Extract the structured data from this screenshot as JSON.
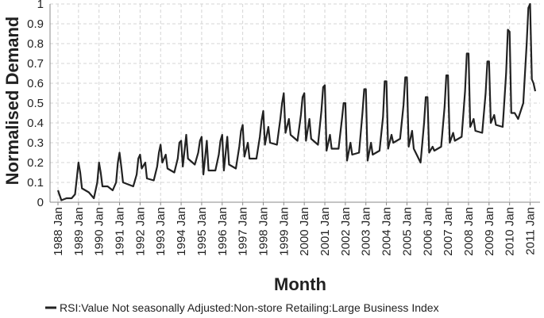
{
  "chart_data": {
    "type": "line",
    "title": "",
    "xlabel": "Month",
    "ylabel": "Normalised Demand",
    "ylim": [
      0,
      1
    ],
    "yticks": [
      "0",
      "0.1",
      "0.2",
      "0.3",
      "0.4",
      "0.5",
      "0.6",
      "0.7",
      "0.8",
      "0.9",
      "1"
    ],
    "xlim": [
      "1988 Jan",
      "2011 Apr"
    ],
    "xticks": [
      "1988 Jan",
      "1989 Jan",
      "1990 Jan",
      "1991 Jan",
      "1992 Jan",
      "1993 Jan",
      "1994 Jan",
      "1995 Jan",
      "1996 Jan",
      "1997 Jan",
      "1998 Jan",
      "1999 Jan",
      "2000 Jan",
      "2001 Jan",
      "2002 Jan",
      "2003 Jan",
      "2004 Jan",
      "2005 Jan",
      "2006 Jan",
      "2007 Jan",
      "2008 Jan",
      "2009 Jan",
      "2010 Jan",
      "2011 Jan"
    ],
    "grid": true,
    "legend_position": "bottom",
    "series": [
      {
        "name": "RSI:Value Not seasonally Adjusted:Non-store Retailing:Large Business Index",
        "color": "#222222",
        "points": [
          [
            "1988 Jan",
            0.06
          ],
          [
            "1988 Mar",
            0.01
          ],
          [
            "1988 Jun",
            0.02
          ],
          [
            "1988 Sep",
            0.02
          ],
          [
            "1988 Nov",
            0.04
          ],
          [
            "1988 Dec",
            0.12
          ],
          [
            "1989 Jan",
            0.2
          ],
          [
            "1989 Feb",
            0.15
          ],
          [
            "1989 Mar",
            0.07
          ],
          [
            "1989 Jul",
            0.05
          ],
          [
            "1989 Oct",
            0.02
          ],
          [
            "1989 Dec",
            0.1
          ],
          [
            "1990 Jan",
            0.2
          ],
          [
            "1990 Feb",
            0.15
          ],
          [
            "1990 Mar",
            0.08
          ],
          [
            "1990 Jun",
            0.08
          ],
          [
            "1990 Sep",
            0.06
          ],
          [
            "1990 Nov",
            0.1
          ],
          [
            "1990 Dec",
            0.2
          ],
          [
            "1991 Jan",
            0.25
          ],
          [
            "1991 Feb",
            0.18
          ],
          [
            "1991 Mar",
            0.1
          ],
          [
            "1991 Jun",
            0.09
          ],
          [
            "1991 Sep",
            0.08
          ],
          [
            "1991 Nov",
            0.14
          ],
          [
            "1991 Dec",
            0.22
          ],
          [
            "1992 Jan",
            0.24
          ],
          [
            "1992 Feb",
            0.17
          ],
          [
            "1992 Apr",
            0.2
          ],
          [
            "1992 May",
            0.12
          ],
          [
            "1992 Sep",
            0.11
          ],
          [
            "1992 Nov",
            0.18
          ],
          [
            "1992 Dec",
            0.25
          ],
          [
            "1993 Jan",
            0.29
          ],
          [
            "1993 Feb",
            0.2
          ],
          [
            "1993 Apr",
            0.24
          ],
          [
            "1993 May",
            0.17
          ],
          [
            "1993 Sep",
            0.15
          ],
          [
            "1993 Nov",
            0.22
          ],
          [
            "1993 Dec",
            0.3
          ],
          [
            "1994 Jan",
            0.31
          ],
          [
            "1994 Feb",
            0.18
          ],
          [
            "1994 Apr",
            0.34
          ],
          [
            "1994 May",
            0.22
          ],
          [
            "1994 Sep",
            0.19
          ],
          [
            "1994 Nov",
            0.25
          ],
          [
            "1994 Dec",
            0.31
          ],
          [
            "1995 Jan",
            0.33
          ],
          [
            "1995 Feb",
            0.14
          ],
          [
            "1995 Apr",
            0.31
          ],
          [
            "1995 May",
            0.16
          ],
          [
            "1995 Sep",
            0.16
          ],
          [
            "1995 Nov",
            0.24
          ],
          [
            "1995 Dec",
            0.31
          ],
          [
            "1996 Jan",
            0.34
          ],
          [
            "1996 Feb",
            0.16
          ],
          [
            "1996 Apr",
            0.33
          ],
          [
            "1996 May",
            0.19
          ],
          [
            "1996 Sep",
            0.17
          ],
          [
            "1996 Nov",
            0.28
          ],
          [
            "1996 Dec",
            0.36
          ],
          [
            "1997 Jan",
            0.39
          ],
          [
            "1997 Feb",
            0.23
          ],
          [
            "1997 Apr",
            0.3
          ],
          [
            "1997 May",
            0.22
          ],
          [
            "1997 Sep",
            0.22
          ],
          [
            "1997 Nov",
            0.33
          ],
          [
            "1997 Dec",
            0.41
          ],
          [
            "1998 Jan",
            0.46
          ],
          [
            "1998 Feb",
            0.29
          ],
          [
            "1998 Apr",
            0.38
          ],
          [
            "1998 May",
            0.3
          ],
          [
            "1998 Sep",
            0.29
          ],
          [
            "1998 Nov",
            0.42
          ],
          [
            "1998 Dec",
            0.5
          ],
          [
            "1999 Jan",
            0.55
          ],
          [
            "1999 Feb",
            0.35
          ],
          [
            "1999 Apr",
            0.42
          ],
          [
            "1999 May",
            0.34
          ],
          [
            "1999 Sep",
            0.31
          ],
          [
            "1999 Nov",
            0.44
          ],
          [
            "1999 Dec",
            0.53
          ],
          [
            "2000 Jan",
            0.55
          ],
          [
            "2000 Feb",
            0.31
          ],
          [
            "2000 Apr",
            0.42
          ],
          [
            "2000 May",
            0.32
          ],
          [
            "2000 Sep",
            0.29
          ],
          [
            "2000 Nov",
            0.46
          ],
          [
            "2000 Dec",
            0.58
          ],
          [
            "2001 Jan",
            0.59
          ],
          [
            "2001 Feb",
            0.26
          ],
          [
            "2001 Apr",
            0.34
          ],
          [
            "2001 May",
            0.27
          ],
          [
            "2001 Sep",
            0.27
          ],
          [
            "2001 Nov",
            0.42
          ],
          [
            "2001 Dec",
            0.5
          ],
          [
            "2002 Jan",
            0.5
          ],
          [
            "2002 Feb",
            0.21
          ],
          [
            "2002 Apr",
            0.3
          ],
          [
            "2002 May",
            0.24
          ],
          [
            "2002 Sep",
            0.25
          ],
          [
            "2002 Nov",
            0.45
          ],
          [
            "2002 Dec",
            0.57
          ],
          [
            "2003 Jan",
            0.57
          ],
          [
            "2003 Feb",
            0.21
          ],
          [
            "2003 Apr",
            0.3
          ],
          [
            "2003 May",
            0.24
          ],
          [
            "2003 Sep",
            0.26
          ],
          [
            "2003 Nov",
            0.43
          ],
          [
            "2003 Dec",
            0.61
          ],
          [
            "2004 Jan",
            0.61
          ],
          [
            "2004 Feb",
            0.27
          ],
          [
            "2004 Apr",
            0.34
          ],
          [
            "2004 May",
            0.3
          ],
          [
            "2004 Sep",
            0.32
          ],
          [
            "2004 Nov",
            0.49
          ],
          [
            "2004 Dec",
            0.63
          ],
          [
            "2005 Jan",
            0.63
          ],
          [
            "2005 Feb",
            0.28
          ],
          [
            "2005 Apr",
            0.36
          ],
          [
            "2005 May",
            0.27
          ],
          [
            "2005 Sep",
            0.2
          ],
          [
            "2005 Nov",
            0.4
          ],
          [
            "2005 Dec",
            0.53
          ],
          [
            "2006 Jan",
            0.53
          ],
          [
            "2006 Feb",
            0.25
          ],
          [
            "2006 Apr",
            0.28
          ],
          [
            "2006 May",
            0.26
          ],
          [
            "2006 Sep",
            0.28
          ],
          [
            "2006 Nov",
            0.48
          ],
          [
            "2006 Dec",
            0.64
          ],
          [
            "2007 Jan",
            0.64
          ],
          [
            "2007 Feb",
            0.3
          ],
          [
            "2007 Apr",
            0.35
          ],
          [
            "2007 May",
            0.31
          ],
          [
            "2007 Sep",
            0.33
          ],
          [
            "2007 Nov",
            0.56
          ],
          [
            "2007 Dec",
            0.75
          ],
          [
            "2008 Jan",
            0.75
          ],
          [
            "2008 Feb",
            0.38
          ],
          [
            "2008 Apr",
            0.42
          ],
          [
            "2008 May",
            0.36
          ],
          [
            "2008 Sep",
            0.35
          ],
          [
            "2008 Nov",
            0.55
          ],
          [
            "2008 Dec",
            0.71
          ],
          [
            "2009 Jan",
            0.71
          ],
          [
            "2009 Feb",
            0.4
          ],
          [
            "2009 Apr",
            0.44
          ],
          [
            "2009 May",
            0.39
          ],
          [
            "2009 Sep",
            0.38
          ],
          [
            "2009 Nov",
            0.65
          ],
          [
            "2009 Dec",
            0.87
          ],
          [
            "2010 Jan",
            0.86
          ],
          [
            "2010 Feb",
            0.45
          ],
          [
            "2010 Apr",
            0.45
          ],
          [
            "2010 Jun",
            0.42
          ],
          [
            "2010 Sep",
            0.5
          ],
          [
            "2010 Nov",
            0.8
          ],
          [
            "2010 Dec",
            0.98
          ],
          [
            "2011 Jan",
            1.0
          ],
          [
            "2011 Feb",
            0.62
          ],
          [
            "2011 Mar",
            0.6
          ],
          [
            "2011 Apr",
            0.56
          ]
        ]
      }
    ]
  }
}
